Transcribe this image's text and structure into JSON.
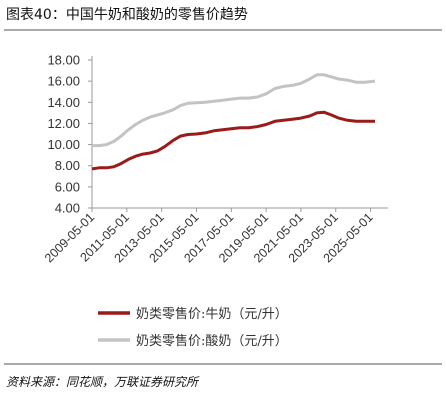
{
  "figure_title": "图表40：中国牛奶和酸奶的零售价趋势",
  "source_note": "资料来源：同花顺，万联证券研究所",
  "colors": {
    "milk": "#9b1a1a",
    "yogurt": "#c3c3c3",
    "axis": "#9a9a9a",
    "text": "#333333"
  },
  "chart_data": {
    "type": "line",
    "ylim": [
      4.0,
      18.0
    ],
    "yticks": [
      "4.00",
      "6.00",
      "8.00",
      "10.00",
      "12.00",
      "14.00",
      "16.00",
      "18.00"
    ],
    "xlim": [
      "2009-05-01",
      "2026-05-01"
    ],
    "xticks": [
      "2009-05-01",
      "2011-05-01",
      "2013-05-01",
      "2015-05-01",
      "2017-05-01",
      "2019-05-01",
      "2021-05-01",
      "2023-05-01",
      "2025-05-01"
    ],
    "series": [
      {
        "name": "奶类零售价:牛奶（元/升）",
        "color": "#9b1a1a",
        "points": [
          [
            "2009-05-01",
            7.7
          ],
          [
            "2009-10-01",
            7.8
          ],
          [
            "2010-03-01",
            7.8
          ],
          [
            "2010-08-01",
            7.9
          ],
          [
            "2011-01-01",
            8.2
          ],
          [
            "2011-06-01",
            8.6
          ],
          [
            "2011-11-01",
            8.9
          ],
          [
            "2012-04-01",
            9.1
          ],
          [
            "2012-09-01",
            9.2
          ],
          [
            "2013-02-01",
            9.4
          ],
          [
            "2013-07-01",
            9.8
          ],
          [
            "2014-01-01",
            10.4
          ],
          [
            "2014-06-01",
            10.8
          ],
          [
            "2014-11-01",
            10.95
          ],
          [
            "2015-05-01",
            11.0
          ],
          [
            "2015-11-01",
            11.1
          ],
          [
            "2016-05-01",
            11.3
          ],
          [
            "2016-11-01",
            11.4
          ],
          [
            "2017-05-01",
            11.5
          ],
          [
            "2017-11-01",
            11.6
          ],
          [
            "2018-05-01",
            11.6
          ],
          [
            "2018-11-01",
            11.7
          ],
          [
            "2019-05-01",
            11.9
          ],
          [
            "2019-11-01",
            12.2
          ],
          [
            "2020-05-01",
            12.3
          ],
          [
            "2020-11-01",
            12.4
          ],
          [
            "2021-05-01",
            12.5
          ],
          [
            "2021-11-01",
            12.7
          ],
          [
            "2022-04-01",
            13.0
          ],
          [
            "2022-09-01",
            13.05
          ],
          [
            "2023-02-01",
            12.8
          ],
          [
            "2023-07-01",
            12.5
          ],
          [
            "2024-01-01",
            12.3
          ],
          [
            "2024-07-01",
            12.2
          ],
          [
            "2025-01-01",
            12.2
          ],
          [
            "2025-08-01",
            12.2
          ]
        ]
      },
      {
        "name": "奶类零售价:酸奶（元/升）",
        "color": "#c3c3c3",
        "points": [
          [
            "2009-05-01",
            9.9
          ],
          [
            "2009-10-01",
            9.9
          ],
          [
            "2010-03-01",
            10.0
          ],
          [
            "2010-08-01",
            10.3
          ],
          [
            "2011-01-01",
            10.8
          ],
          [
            "2011-06-01",
            11.4
          ],
          [
            "2011-11-01",
            11.9
          ],
          [
            "2012-04-01",
            12.3
          ],
          [
            "2012-09-01",
            12.6
          ],
          [
            "2013-02-01",
            12.8
          ],
          [
            "2013-07-01",
            13.0
          ],
          [
            "2014-01-01",
            13.3
          ],
          [
            "2014-06-01",
            13.7
          ],
          [
            "2014-11-01",
            13.9
          ],
          [
            "2015-05-01",
            13.95
          ],
          [
            "2015-11-01",
            14.0
          ],
          [
            "2016-05-01",
            14.1
          ],
          [
            "2016-11-01",
            14.2
          ],
          [
            "2017-05-01",
            14.3
          ],
          [
            "2017-11-01",
            14.4
          ],
          [
            "2018-05-01",
            14.4
          ],
          [
            "2018-11-01",
            14.5
          ],
          [
            "2019-05-01",
            14.8
          ],
          [
            "2019-11-01",
            15.3
          ],
          [
            "2020-05-01",
            15.5
          ],
          [
            "2020-11-01",
            15.6
          ],
          [
            "2021-05-01",
            15.8
          ],
          [
            "2021-11-01",
            16.2
          ],
          [
            "2022-04-01",
            16.6
          ],
          [
            "2022-09-01",
            16.6
          ],
          [
            "2023-02-01",
            16.4
          ],
          [
            "2023-07-01",
            16.2
          ],
          [
            "2024-01-01",
            16.1
          ],
          [
            "2024-07-01",
            15.9
          ],
          [
            "2025-01-01",
            15.9
          ],
          [
            "2025-08-01",
            16.0
          ]
        ]
      }
    ]
  }
}
